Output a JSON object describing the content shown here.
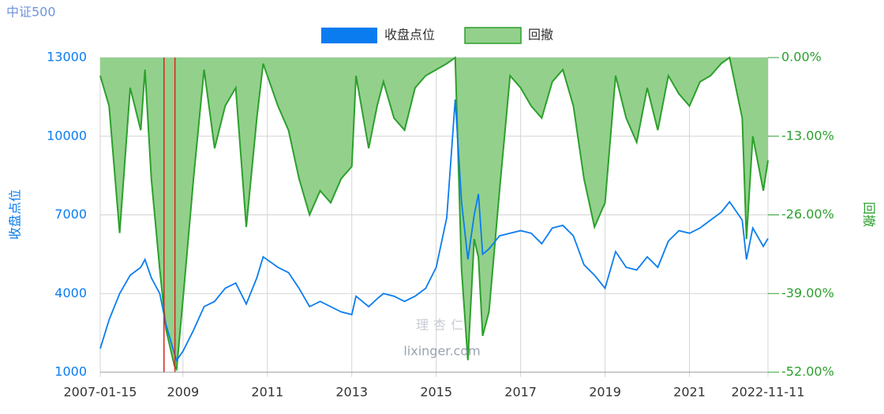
{
  "chart_data": {
    "type": "line-area",
    "title": "中证500",
    "watermark": [
      "理杏仁",
      "lixinger.com"
    ],
    "x": [
      2007.04,
      2007.25,
      2007.5,
      2007.75,
      2008.0,
      2008.1,
      2008.25,
      2008.45,
      2008.6,
      2008.8,
      2008.85,
      2009.0,
      2009.25,
      2009.5,
      2009.75,
      2010.0,
      2010.25,
      2010.5,
      2010.75,
      2010.9,
      2011.25,
      2011.5,
      2011.75,
      2012.0,
      2012.25,
      2012.5,
      2012.75,
      2013.0,
      2013.1,
      2013.4,
      2013.6,
      2013.75,
      2014.0,
      2014.25,
      2014.5,
      2014.75,
      2015.0,
      2015.25,
      2015.45,
      2015.6,
      2015.75,
      2015.9,
      2016.0,
      2016.1,
      2016.25,
      2016.5,
      2016.75,
      2017.0,
      2017.25,
      2017.5,
      2017.75,
      2018.0,
      2018.25,
      2018.5,
      2018.75,
      2019.0,
      2019.25,
      2019.5,
      2019.75,
      2020.0,
      2020.25,
      2020.5,
      2020.75,
      2021.0,
      2021.25,
      2021.5,
      2021.75,
      2021.95,
      2022.25,
      2022.35,
      2022.5,
      2022.75,
      2022.86
    ],
    "series": [
      {
        "name": "收盘点位",
        "color": "#0a7cf0",
        "axis": "y",
        "values": [
          1900,
          3000,
          4000,
          4700,
          5000,
          5300,
          4600,
          4000,
          2800,
          1700,
          1450,
          1800,
          2600,
          3500,
          3700,
          4200,
          4400,
          3600,
          4600,
          5400,
          5000,
          4800,
          4200,
          3500,
          3700,
          3500,
          3300,
          3200,
          3900,
          3500,
          3800,
          4000,
          3900,
          3700,
          3900,
          4200,
          5000,
          6900,
          11400,
          7500,
          5300,
          7000,
          7800,
          5500,
          5700,
          6200,
          6300,
          6400,
          6300,
          5900,
          6500,
          6600,
          6200,
          5100,
          4700,
          4200,
          5600,
          5000,
          4900,
          5400,
          5000,
          6000,
          6400,
          6300,
          6500,
          6800,
          7100,
          7500,
          6800,
          5300,
          6500,
          5800,
          6100
        ]
      },
      {
        "name": "回撤",
        "color": "#2ca02c",
        "fill": "#93d08c",
        "axis": "y2",
        "values": [
          -3,
          -8,
          -29,
          -5,
          -12,
          -2,
          -20,
          -35,
          -45,
          -51,
          -51.5,
          -40,
          -20,
          -2,
          -15,
          -8,
          -5,
          -28,
          -10,
          -1,
          -8,
          -12,
          -20,
          -26,
          -22,
          -24,
          -20,
          -18,
          -3,
          -15,
          -8,
          -4,
          -10,
          -12,
          -5,
          -3,
          -2,
          -1,
          0,
          -35,
          -50,
          -30,
          -33,
          -46,
          -42,
          -22,
          -3,
          -5,
          -8,
          -10,
          -4,
          -2,
          -8,
          -20,
          -28,
          -24,
          -3,
          -10,
          -14,
          -5,
          -12,
          -3,
          -6,
          -8,
          -4,
          -3,
          -1,
          0,
          -10,
          -30,
          -13,
          -22,
          -17
        ]
      }
    ],
    "xlim": [
      2007.04,
      2022.86
    ],
    "xticks": [
      {
        "value": 2007.04,
        "label": "2007-01-15"
      },
      2009,
      2011,
      2013,
      2015,
      2017,
      2019,
      2021,
      {
        "value": 2022.86,
        "label": "2022-11-11"
      }
    ],
    "ylabel": "收盘点位",
    "ylim": [
      1000,
      13000
    ],
    "yticks": [
      1000,
      4000,
      7000,
      10000,
      13000
    ],
    "y2label": "回撤",
    "y2lim": [
      -52,
      0
    ],
    "y2ticks": [
      {
        "value": -52,
        "label": "-52.00%"
      },
      {
        "value": -39,
        "label": "-39.00%"
      },
      {
        "value": -26,
        "label": "-26.00%"
      },
      {
        "value": -13,
        "label": "-13.00%"
      },
      {
        "value": 0,
        "label": "0.00%"
      }
    ],
    "vlines": {
      "color": "#e02020",
      "x": [
        2008.55,
        2008.81
      ]
    },
    "grid": true,
    "legend": "top"
  }
}
